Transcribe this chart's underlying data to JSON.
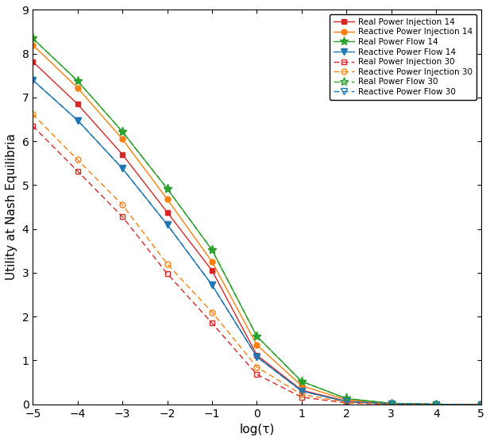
{
  "x": [
    -5,
    -4,
    -3,
    -2,
    -1,
    0,
    1,
    2,
    3,
    4,
    5
  ],
  "series": [
    {
      "key": "RPI14",
      "label": "Real Power Injection 14",
      "color": "#d62728",
      "linestyle": "-",
      "marker": "s",
      "dashed": false,
      "values": [
        7.82,
        6.85,
        5.7,
        4.38,
        3.05,
        1.12,
        0.32,
        0.07,
        0.01,
        0.0,
        -0.01
      ]
    },
    {
      "key": "RPQI14",
      "label": "Reactive Power Injection 14",
      "color": "#ff7f0e",
      "linestyle": "-",
      "marker": "o",
      "dashed": false,
      "values": [
        8.2,
        7.22,
        6.05,
        4.68,
        3.25,
        1.35,
        0.42,
        0.1,
        0.02,
        0.0,
        -0.01
      ]
    },
    {
      "key": "RPF14",
      "label": "Real Power Flow 14",
      "color": "#2ca02c",
      "linestyle": "-",
      "marker": "*",
      "dashed": false,
      "values": [
        8.35,
        7.38,
        6.22,
        4.92,
        3.52,
        1.55,
        0.52,
        0.13,
        0.02,
        0.0,
        -0.01
      ]
    },
    {
      "key": "RPQF14",
      "label": "Reactive Power Flow 14",
      "color": "#1f77b4",
      "linestyle": "-",
      "marker": "v",
      "dashed": false,
      "values": [
        7.4,
        6.48,
        5.38,
        4.1,
        2.72,
        1.08,
        0.3,
        0.06,
        0.01,
        0.0,
        -0.01
      ]
    },
    {
      "key": "RPI30",
      "label": "Real Power Injection 30",
      "color": "#d62728",
      "linestyle": "--",
      "marker": "s",
      "dashed": true,
      "values": [
        6.35,
        5.32,
        4.28,
        2.98,
        1.85,
        0.68,
        0.16,
        0.03,
        0.0,
        -0.01,
        -0.01
      ]
    },
    {
      "key": "RPQI30",
      "label": "Reactive Power Injection 30",
      "color": "#ff7f0e",
      "linestyle": "--",
      "marker": "o",
      "dashed": true,
      "values": [
        6.62,
        5.58,
        4.55,
        3.2,
        2.1,
        0.85,
        0.22,
        0.05,
        0.0,
        -0.01,
        -0.01
      ]
    },
    {
      "key": "RPF30",
      "label": "Real Power Flow 30",
      "color": "#2ca02c",
      "linestyle": "--",
      "marker": "*",
      "dashed": true,
      "values": [
        8.35,
        7.38,
        6.22,
        4.92,
        3.52,
        1.55,
        0.52,
        0.13,
        0.02,
        0.0,
        -0.01
      ]
    },
    {
      "key": "RPQF30",
      "label": "Reactive Power Flow 30",
      "color": "#1f77b4",
      "linestyle": "--",
      "marker": "v",
      "dashed": true,
      "values": [
        7.4,
        6.48,
        5.38,
        4.1,
        2.72,
        1.08,
        0.3,
        0.06,
        0.01,
        0.0,
        -0.01
      ]
    }
  ],
  "xlabel": "log(τ)",
  "ylabel": "Utility at Nash Equilibria",
  "xlim": [
    -5,
    5
  ],
  "ylim": [
    0,
    9
  ],
  "yticks": [
    0,
    1,
    2,
    3,
    4,
    5,
    6,
    7,
    8,
    9
  ],
  "xticks": [
    -5,
    -4,
    -3,
    -2,
    -1,
    0,
    1,
    2,
    3,
    4,
    5
  ],
  "background_color": "#ffffff",
  "legend_loc": "upper right",
  "figsize": [
    6.17,
    5.56
  ],
  "dpi": 100
}
